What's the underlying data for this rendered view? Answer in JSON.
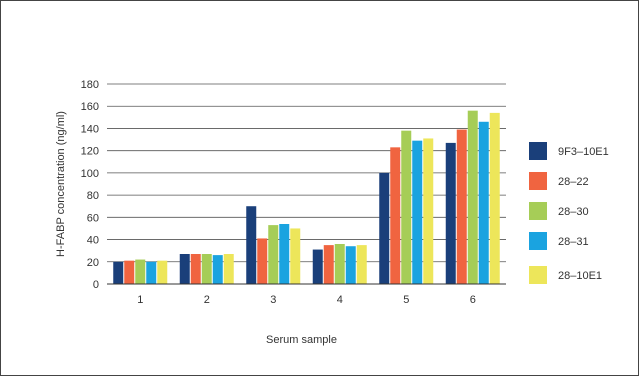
{
  "chart_data": {
    "type": "bar",
    "title": "",
    "xlabel": "Serum sample",
    "ylabel": "H-FABP concentration (ng/ml)",
    "categories": [
      "1",
      "2",
      "3",
      "4",
      "5",
      "6"
    ],
    "ylim": [
      0,
      180
    ],
    "yticks": [
      0,
      20,
      40,
      60,
      80,
      100,
      120,
      140,
      160,
      180
    ],
    "grid": true,
    "legend_position": "right",
    "series": [
      {
        "name": "9F3–10E1",
        "color": "#1a3f7a",
        "values": [
          20,
          27,
          70,
          31,
          100,
          127
        ]
      },
      {
        "name": "28–22",
        "color": "#f06440",
        "values": [
          21,
          27,
          41,
          35,
          123,
          139
        ]
      },
      {
        "name": "28–30",
        "color": "#a6cd57",
        "values": [
          22,
          27,
          53,
          36,
          138,
          156
        ]
      },
      {
        "name": "28–31",
        "color": "#1aa3e0",
        "values": [
          20,
          26,
          54,
          34,
          129,
          146
        ]
      },
      {
        "name": "28–10E1",
        "color": "#ede65a",
        "values": [
          21,
          27,
          50,
          35,
          131,
          154
        ]
      }
    ]
  }
}
